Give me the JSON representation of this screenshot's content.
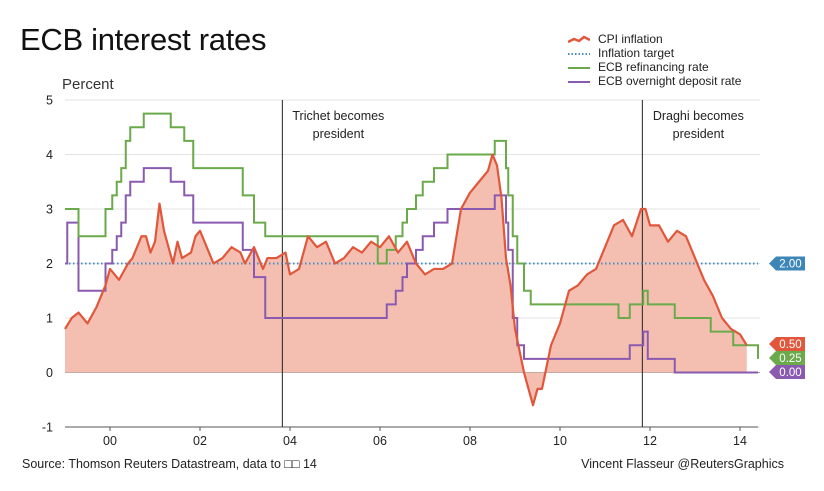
{
  "chart_data": {
    "type": "line",
    "title": "ECB interest rates",
    "ylabel": "Percent",
    "xlabel": "",
    "ylim": [
      -1,
      5
    ],
    "xlim": [
      1999.0,
      2014.4
    ],
    "y_ticks": [
      "-1",
      "0",
      "1",
      "2",
      "3",
      "4",
      "5"
    ],
    "y_tick_values": [
      -1,
      0,
      1,
      2,
      3,
      4,
      5
    ],
    "x_ticks": [
      "00",
      "02",
      "04",
      "06",
      "08",
      "10",
      "12",
      "14"
    ],
    "x_tick_values": [
      2000,
      2002,
      2004,
      2006,
      2008,
      2010,
      2012,
      2014
    ],
    "grid": "horizontal",
    "legend_position": "top-right",
    "series": [
      {
        "name": "CPI inflation",
        "style": "area",
        "color": "#e0573c",
        "fill": "#f4bfb0",
        "x": [
          1999.0,
          1999.15,
          1999.3,
          1999.5,
          1999.7,
          1999.9,
          2000.0,
          2000.2,
          2000.4,
          2000.5,
          2000.7,
          2000.8,
          2000.9,
          2001.0,
          2001.1,
          2001.2,
          2001.4,
          2001.5,
          2001.6,
          2001.8,
          2001.9,
          2002.0,
          2002.1,
          2002.3,
          2002.5,
          2002.7,
          2002.9,
          2003.0,
          2003.2,
          2003.4,
          2003.5,
          2003.7,
          2003.9,
          2004.0,
          2004.2,
          2004.4,
          2004.6,
          2004.8,
          2005.0,
          2005.2,
          2005.4,
          2005.6,
          2005.8,
          2006.0,
          2006.2,
          2006.4,
          2006.6,
          2006.8,
          2007.0,
          2007.2,
          2007.4,
          2007.6,
          2007.8,
          2008.0,
          2008.2,
          2008.4,
          2008.5,
          2008.6,
          2008.7,
          2008.8,
          2008.9,
          2009.0,
          2009.2,
          2009.4,
          2009.5,
          2009.6,
          2009.8,
          2010.0,
          2010.2,
          2010.4,
          2010.6,
          2010.8,
          2011.0,
          2011.2,
          2011.4,
          2011.6,
          2011.8,
          2011.9,
          2012.0,
          2012.2,
          2012.4,
          2012.6,
          2012.8,
          2013.0,
          2013.2,
          2013.4,
          2013.6,
          2013.8,
          2014.0,
          2014.15
        ],
        "values": [
          0.8,
          1.0,
          1.1,
          0.9,
          1.2,
          1.6,
          1.9,
          1.7,
          2.0,
          2.1,
          2.5,
          2.5,
          2.2,
          2.4,
          3.1,
          2.6,
          2.0,
          2.4,
          2.1,
          2.2,
          2.5,
          2.6,
          2.4,
          2.0,
          2.1,
          2.3,
          2.2,
          2.0,
          2.3,
          1.9,
          2.1,
          2.1,
          2.2,
          1.8,
          1.9,
          2.5,
          2.3,
          2.4,
          2.0,
          2.1,
          2.3,
          2.2,
          2.4,
          2.3,
          2.5,
          2.2,
          2.4,
          2.0,
          1.8,
          1.9,
          1.9,
          2.0,
          3.0,
          3.3,
          3.5,
          3.7,
          4.0,
          3.8,
          3.2,
          2.1,
          1.6,
          0.8,
          0.0,
          -0.6,
          -0.3,
          -0.3,
          0.5,
          0.9,
          1.5,
          1.6,
          1.8,
          1.9,
          2.3,
          2.7,
          2.8,
          2.5,
          3.0,
          3.0,
          2.7,
          2.7,
          2.4,
          2.6,
          2.5,
          2.1,
          1.7,
          1.4,
          1.0,
          0.8,
          0.7,
          0.5
        ]
      },
      {
        "name": "Inflation target",
        "style": "dotted",
        "color": "#4a8fc0",
        "x": [
          1999.0,
          2014.4
        ],
        "values": [
          2.0,
          2.0
        ]
      },
      {
        "name": "ECB refinancing rate",
        "style": "step",
        "color": "#6aaa4a",
        "x": [
          1999.0,
          1999.3,
          1999.9,
          2000.05,
          2000.15,
          2000.25,
          2000.35,
          2000.45,
          2000.75,
          2001.35,
          2001.65,
          2001.85,
          2002.95,
          2003.2,
          2003.45,
          2005.95,
          2006.15,
          2006.35,
          2006.5,
          2006.6,
          2006.8,
          2006.95,
          2007.2,
          2007.5,
          2008.55,
          2008.8,
          2008.85,
          2008.95,
          2009.05,
          2009.2,
          2009.35,
          2011.3,
          2011.55,
          2011.85,
          2011.95,
          2012.55,
          2013.35,
          2013.85,
          2014.4
        ],
        "values": [
          3.0,
          2.5,
          3.0,
          3.25,
          3.5,
          3.75,
          4.25,
          4.5,
          4.75,
          4.5,
          4.25,
          3.75,
          3.25,
          2.75,
          2.5,
          2.0,
          2.25,
          2.5,
          2.75,
          3.0,
          3.25,
          3.5,
          3.75,
          4.0,
          4.25,
          3.75,
          3.25,
          2.5,
          2.0,
          1.5,
          1.25,
          1.0,
          1.25,
          1.5,
          1.25,
          1.0,
          0.75,
          0.5,
          0.25
        ]
      },
      {
        "name": "ECB overnight deposit rate",
        "style": "step",
        "color": "#8a5ab0",
        "x": [
          1999.0,
          1999.05,
          1999.3,
          1999.9,
          2000.05,
          2000.15,
          2000.25,
          2000.35,
          2000.45,
          2000.75,
          2001.35,
          2001.65,
          2001.85,
          2002.95,
          2003.2,
          2003.45,
          2005.95,
          2006.15,
          2006.35,
          2006.5,
          2006.6,
          2006.8,
          2006.95,
          2007.2,
          2007.5,
          2008.55,
          2008.8,
          2008.85,
          2008.95,
          2009.05,
          2009.2,
          2009.35,
          2011.3,
          2011.55,
          2011.85,
          2011.95,
          2012.55,
          2014.4
        ],
        "values": [
          2.0,
          2.75,
          1.5,
          2.0,
          2.25,
          2.5,
          2.75,
          3.25,
          3.5,
          3.75,
          3.5,
          3.25,
          2.75,
          2.25,
          1.75,
          1.0,
          1.0,
          1.25,
          1.5,
          1.75,
          2.0,
          2.25,
          2.5,
          2.75,
          3.0,
          3.25,
          2.75,
          2.25,
          1.0,
          0.5,
          0.25,
          0.25,
          0.25,
          0.5,
          0.75,
          0.25,
          0.0,
          0.0
        ]
      }
    ],
    "annotations": [
      {
        "x": 2003.83,
        "lines": [
          "Trichet becomes",
          "president"
        ]
      },
      {
        "x": 2011.83,
        "lines": [
          "Draghi becomes",
          "president"
        ]
      }
    ],
    "end_labels": [
      {
        "text": "2.00",
        "value": 2.0,
        "color": "#3f86b8"
      },
      {
        "text": "0.50",
        "value": 0.5,
        "color": "#e0573c"
      },
      {
        "text": "0.25",
        "value": 0.25,
        "color": "#6aaa4a"
      },
      {
        "text": "0.00",
        "value": 0.0,
        "color": "#8a5ab0"
      }
    ]
  },
  "footer": {
    "source": "Source: Thomson Reuters Datastream, data to □□ 14",
    "credit": "Vincent Flasseur @ReutersGraphics"
  }
}
